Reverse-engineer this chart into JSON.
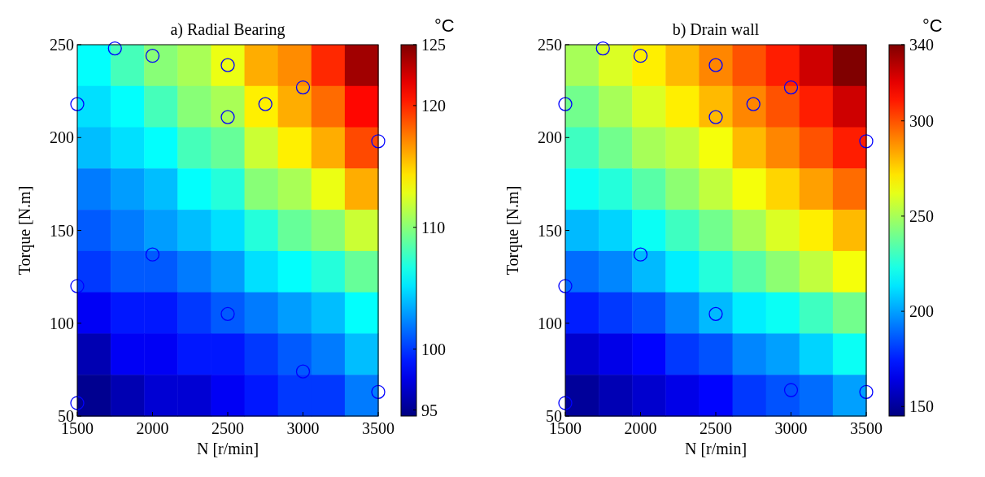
{
  "chart_data": [
    {
      "type": "heatmap",
      "title": "a) Radial Bearing",
      "xlabel": "N [r/min]",
      "ylabel": "Torque [N.m]",
      "clabel": "°C",
      "xlim": [
        1500,
        3500
      ],
      "xticks": [
        1500,
        2000,
        2500,
        3000,
        3500
      ],
      "ylim": [
        50,
        250
      ],
      "yticks": [
        50,
        100,
        150,
        200,
        250
      ],
      "clim": [
        94.5,
        125
      ],
      "cticks": [
        95,
        100,
        110,
        120,
        125
      ],
      "marker": "circle",
      "cells": [
        [
          106,
          108,
          110,
          111,
          113,
          116,
          117,
          120,
          124
        ],
        [
          105,
          106,
          108,
          110,
          111,
          114,
          116,
          118,
          121
        ],
        [
          104,
          105,
          106,
          108,
          109,
          112,
          114,
          116,
          119
        ],
        [
          102,
          103,
          104,
          106,
          107,
          110,
          111,
          113,
          116
        ],
        [
          101,
          102,
          103,
          104,
          105,
          107,
          109,
          110,
          112
        ],
        [
          100,
          101,
          101,
          102,
          103,
          105,
          106,
          107,
          109
        ],
        [
          98,
          99,
          99,
          100,
          101,
          102,
          103,
          104,
          106
        ],
        [
          96,
          98,
          98,
          99,
          99,
          100,
          101,
          102,
          104
        ],
        [
          95,
          96,
          97,
          97,
          98,
          99,
          100,
          100,
          102
        ]
      ],
      "series": [
        {
          "type": "scatter",
          "color": "#0000ff",
          "x": [
            1500,
            1500,
            1500,
            1750,
            2000,
            2000,
            2500,
            2500,
            2500,
            2750,
            3000,
            3000,
            3500,
            3500
          ],
          "values": [
            57,
            120,
            218,
            248,
            244,
            137,
            239,
            211,
            105,
            218,
            227,
            74,
            198,
            63
          ]
        }
      ]
    },
    {
      "type": "heatmap",
      "title": "b) Drain wall",
      "xlabel": "N [r/min]",
      "ylabel": "Torque [N.m]",
      "clabel": "°C",
      "xlim": [
        1500,
        3500
      ],
      "xticks": [
        1500,
        2000,
        2500,
        3000,
        3500
      ],
      "ylim": [
        50,
        250
      ],
      "yticks": [
        50,
        100,
        150,
        200,
        250
      ],
      "clim": [
        145,
        340
      ],
      "cticks": [
        150,
        200,
        250,
        300,
        340
      ],
      "marker": "circle",
      "cells": [
        [
          250,
          260,
          270,
          280,
          290,
          300,
          310,
          325,
          340
        ],
        [
          240,
          250,
          260,
          270,
          280,
          290,
          300,
          310,
          325
        ],
        [
          230,
          240,
          250,
          255,
          265,
          280,
          290,
          300,
          310
        ],
        [
          220,
          225,
          235,
          245,
          255,
          265,
          275,
          285,
          295
        ],
        [
          205,
          210,
          220,
          230,
          240,
          250,
          260,
          270,
          280
        ],
        [
          190,
          195,
          205,
          215,
          225,
          235,
          245,
          255,
          265
        ],
        [
          175,
          180,
          185,
          195,
          205,
          215,
          220,
          230,
          240
        ],
        [
          160,
          165,
          170,
          180,
          185,
          195,
          200,
          210,
          220
        ],
        [
          150,
          155,
          160,
          165,
          170,
          180,
          185,
          190,
          200
        ]
      ],
      "series": [
        {
          "type": "scatter",
          "color": "#0000ff",
          "x": [
            1500,
            1500,
            1500,
            1750,
            2000,
            2000,
            2500,
            2500,
            2500,
            2750,
            3000,
            3000,
            3500,
            3500
          ],
          "values": [
            57,
            120,
            218,
            248,
            244,
            137,
            239,
            211,
            105,
            218,
            227,
            64,
            198,
            63
          ]
        }
      ]
    }
  ]
}
